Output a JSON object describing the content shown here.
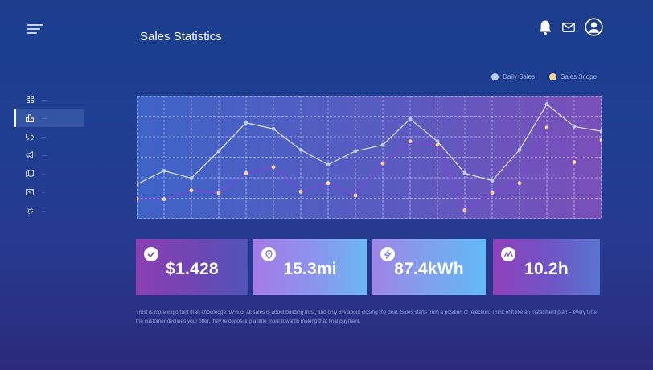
{
  "header": {
    "title": "Sales Statistics"
  },
  "icons": {
    "menu": "hamburger-menu-icon",
    "notifications": "bell-icon",
    "messages": "mail-icon",
    "profile": "user-avatar-icon"
  },
  "sidebar": {
    "items": [
      {
        "icon": "dashboard-grid-icon",
        "label": "-----",
        "active": false
      },
      {
        "icon": "buildings-icon",
        "label": "-----",
        "active": true
      },
      {
        "icon": "truck-icon",
        "label": "----",
        "active": false
      },
      {
        "icon": "megaphone-icon",
        "label": "-----",
        "active": false
      },
      {
        "icon": "map-icon",
        "label": "---",
        "active": false
      },
      {
        "icon": "mail-icon",
        "label": "---",
        "active": false
      },
      {
        "icon": "settings-gear-icon",
        "label": "---",
        "active": false
      }
    ]
  },
  "legend": {
    "daily_sales": "Daily Sales",
    "sales_scope": "Sales Scope"
  },
  "colors": {
    "daily_sales_line": "#e8eeff",
    "daily_sales_dot": "#b9cdf5",
    "sales_scope_line": "#8a3fe0",
    "sales_scope_dot": "#f7d594",
    "chart_grad_start": "#3e63c6",
    "chart_grad_end": "#7a4fb8"
  },
  "chart_data": {
    "type": "line",
    "grid": true,
    "series": [
      {
        "name": "Daily Sales",
        "values": [
          28,
          39,
          33,
          55,
          78,
          73,
          56,
          44,
          55,
          60,
          81,
          63,
          37,
          31,
          56,
          93,
          75,
          71
        ]
      },
      {
        "name": "Sales Scope",
        "values": [
          16,
          16,
          23,
          21,
          37,
          42,
          22,
          29,
          19,
          45,
          63,
          60,
          7,
          21,
          29,
          74,
          46,
          64
        ]
      }
    ]
  },
  "stats": [
    {
      "icon": "check-icon",
      "value": "$1.428"
    },
    {
      "icon": "location-pin-icon",
      "value": "15.3mi"
    },
    {
      "icon": "energy-bolt-icon",
      "value": "87.4kWh"
    },
    {
      "icon": "activity-wave-icon",
      "value": "10.2h"
    }
  ],
  "footer": {
    "text": "Trust is more important than knowledge: 97% of all sales is about building trust, and only 3% about closing the deal. Sales starts from a position of rejection. Think of it like an installment plan – every time the customer declines your offer, they’re depositing a little more towards making that final payment."
  }
}
